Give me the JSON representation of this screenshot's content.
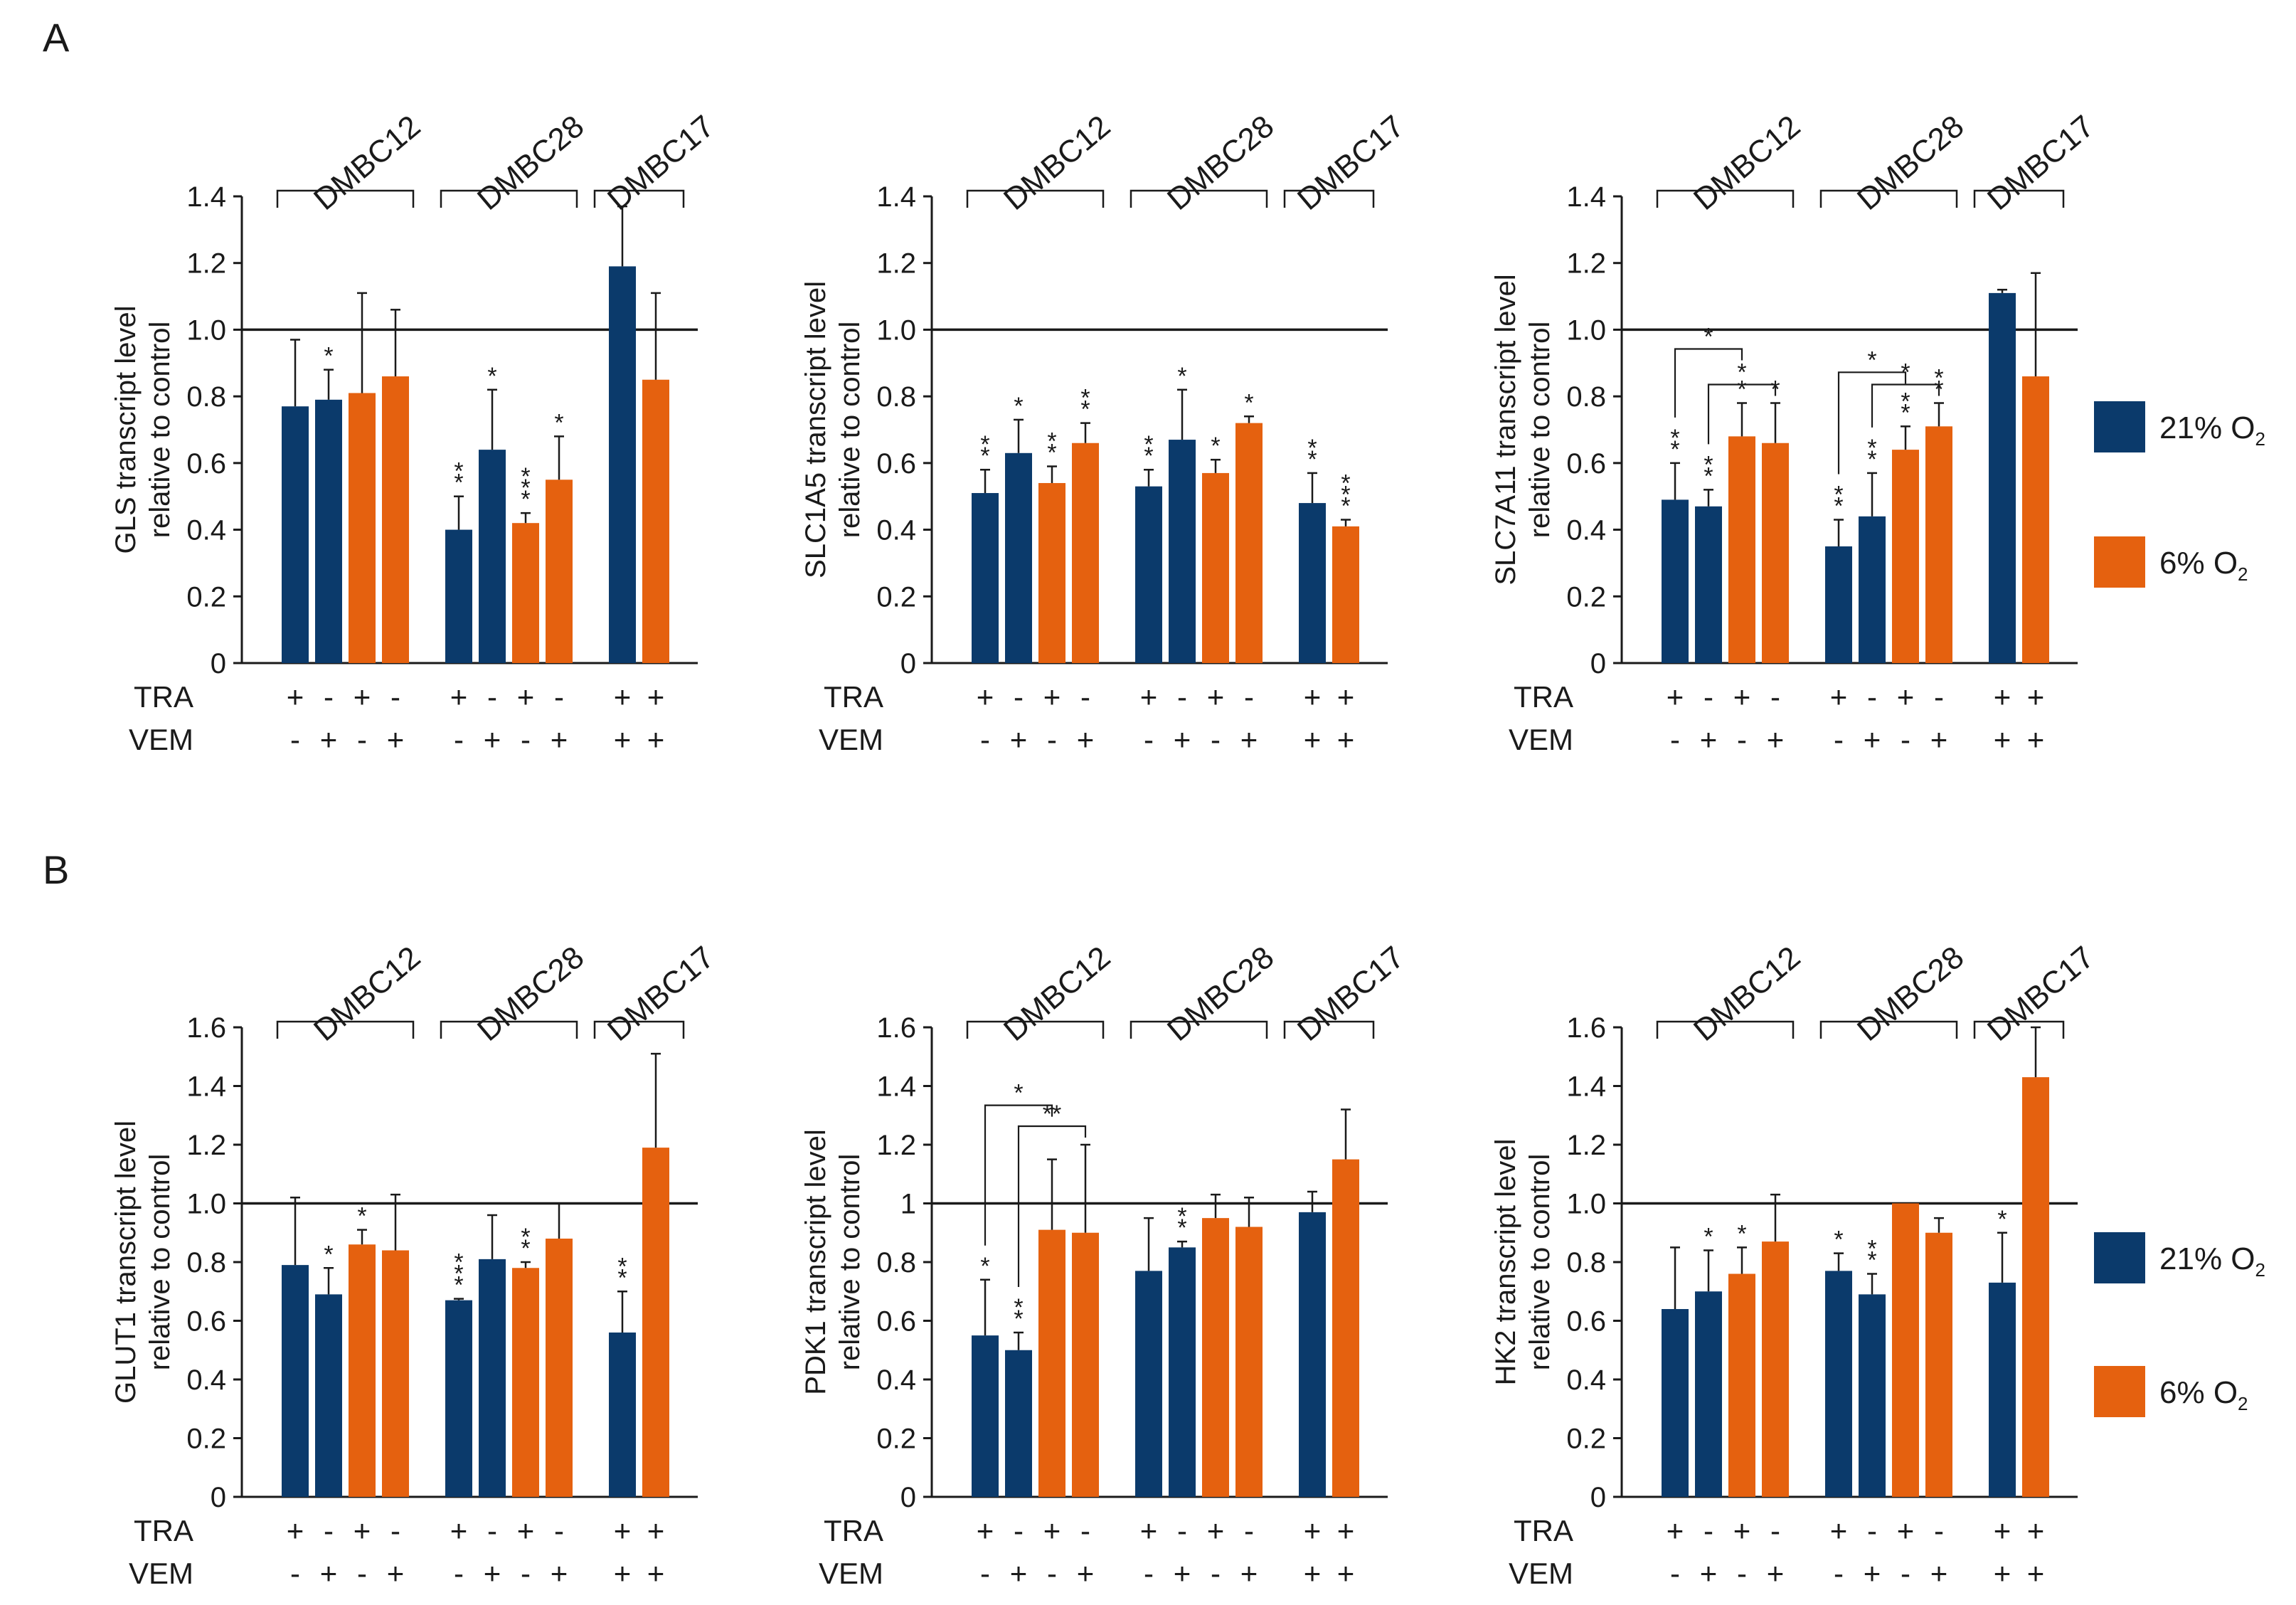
{
  "panel_letters": [
    "A",
    "B"
  ],
  "legend": {
    "items": [
      {
        "label": "21% O",
        "sub": "2",
        "color": "#0b3a6b"
      },
      {
        "label": "6% O",
        "sub": "2",
        "color": "#e5610f"
      }
    ]
  },
  "colors": {
    "navy": "#0b3a6b",
    "orange": "#e5610f",
    "axis": "#1a1a1a"
  },
  "row_labels": {
    "tra": "TRA",
    "vem": "VEM"
  },
  "chart_data": [
    {
      "type": "bar",
      "panel": "A",
      "title": "",
      "ylabel": [
        "GLS transcript level",
        "relative to control"
      ],
      "ylim": [
        0,
        1.4
      ],
      "yticks": [
        "0",
        "0.2",
        "0.4",
        "0.6",
        "0.8",
        "1.0",
        "1.2",
        "1.4"
      ],
      "reference_line": 1.0,
      "error_bars": "positive SD",
      "groups": [
        {
          "name": "DMBC12",
          "bars": [
            {
              "o2": "21% O2",
              "tra": "+",
              "vem": "-",
              "value": 0.77,
              "err": 0.2,
              "sig": ""
            },
            {
              "o2": "21% O2",
              "tra": "-",
              "vem": "+",
              "value": 0.79,
              "err": 0.09,
              "sig": "*"
            },
            {
              "o2": "6% O2",
              "tra": "+",
              "vem": "-",
              "value": 0.81,
              "err": 0.3,
              "sig": ""
            },
            {
              "o2": "6% O2",
              "tra": "-",
              "vem": "+",
              "value": 0.86,
              "err": 0.2,
              "sig": ""
            }
          ]
        },
        {
          "name": "DMBC28",
          "bars": [
            {
              "o2": "21% O2",
              "tra": "+",
              "vem": "-",
              "value": 0.4,
              "err": 0.1,
              "sig": "**"
            },
            {
              "o2": "21% O2",
              "tra": "-",
              "vem": "+",
              "value": 0.64,
              "err": 0.18,
              "sig": "*"
            },
            {
              "o2": "6% O2",
              "tra": "+",
              "vem": "-",
              "value": 0.42,
              "err": 0.03,
              "sig": "***"
            },
            {
              "o2": "6% O2",
              "tra": "-",
              "vem": "+",
              "value": 0.55,
              "err": 0.13,
              "sig": "*"
            }
          ]
        },
        {
          "name": "DMBC17",
          "bars": [
            {
              "o2": "21% O2",
              "tra": "+",
              "vem": "+",
              "value": 1.19,
              "err": 0.18,
              "sig": ""
            },
            {
              "o2": "6% O2",
              "tra": "+",
              "vem": "+",
              "value": 0.85,
              "err": 0.26,
              "sig": ""
            }
          ]
        }
      ],
      "comparisons": []
    },
    {
      "type": "bar",
      "panel": "A",
      "title": "",
      "ylabel": [
        "SLC1A5 transcript level",
        "relative to control"
      ],
      "ylim": [
        0,
        1.4
      ],
      "yticks": [
        "0",
        "0.2",
        "0.4",
        "0.6",
        "0.8",
        "1.0",
        "1.2",
        "1.4"
      ],
      "reference_line": 1.0,
      "error_bars": "positive SD",
      "groups": [
        {
          "name": "DMBC12",
          "bars": [
            {
              "o2": "21% O2",
              "tra": "+",
              "vem": "-",
              "value": 0.51,
              "err": 0.07,
              "sig": "**"
            },
            {
              "o2": "21% O2",
              "tra": "-",
              "vem": "+",
              "value": 0.63,
              "err": 0.1,
              "sig": "*"
            },
            {
              "o2": "6% O2",
              "tra": "+",
              "vem": "-",
              "value": 0.54,
              "err": 0.05,
              "sig": "**"
            },
            {
              "o2": "6% O2",
              "tra": "-",
              "vem": "+",
              "value": 0.66,
              "err": 0.06,
              "sig": "**"
            }
          ]
        },
        {
          "name": "DMBC28",
          "bars": [
            {
              "o2": "21% O2",
              "tra": "+",
              "vem": "-",
              "value": 0.53,
              "err": 0.05,
              "sig": "**"
            },
            {
              "o2": "21% O2",
              "tra": "-",
              "vem": "+",
              "value": 0.67,
              "err": 0.15,
              "sig": "*"
            },
            {
              "o2": "6% O2",
              "tra": "+",
              "vem": "-",
              "value": 0.57,
              "err": 0.04,
              "sig": "*"
            },
            {
              "o2": "6% O2",
              "tra": "-",
              "vem": "+",
              "value": 0.72,
              "err": 0.02,
              "sig": "*"
            }
          ]
        },
        {
          "name": "DMBC17",
          "bars": [
            {
              "o2": "21% O2",
              "tra": "+",
              "vem": "+",
              "value": 0.48,
              "err": 0.09,
              "sig": "**"
            },
            {
              "o2": "6% O2",
              "tra": "+",
              "vem": "+",
              "value": 0.41,
              "err": 0.02,
              "sig": "***"
            }
          ]
        }
      ],
      "comparisons": []
    },
    {
      "type": "bar",
      "panel": "A",
      "title": "",
      "ylabel": [
        "SLC7A11 transcript level",
        "relative to control"
      ],
      "ylim": [
        0,
        1.4
      ],
      "yticks": [
        "0",
        "0.2",
        "0.4",
        "0.6",
        "0.8",
        "1.0",
        "1.2",
        "1.4"
      ],
      "reference_line": 1.0,
      "error_bars": "positive SD",
      "groups": [
        {
          "name": "DMBC12",
          "bars": [
            {
              "o2": "21% O2",
              "tra": "+",
              "vem": "-",
              "value": 0.49,
              "err": 0.11,
              "sig": "**"
            },
            {
              "o2": "21% O2",
              "tra": "-",
              "vem": "+",
              "value": 0.47,
              "err": 0.05,
              "sig": "**"
            },
            {
              "o2": "6% O2",
              "tra": "+",
              "vem": "-",
              "value": 0.68,
              "err": 0.1,
              "sig": "*"
            },
            {
              "o2": "6% O2",
              "tra": "-",
              "vem": "+",
              "value": 0.66,
              "err": 0.12,
              "sig": "*"
            }
          ]
        },
        {
          "name": "DMBC28",
          "bars": [
            {
              "o2": "21% O2",
              "tra": "+",
              "vem": "-",
              "value": 0.35,
              "err": 0.08,
              "sig": "**"
            },
            {
              "o2": "21% O2",
              "tra": "-",
              "vem": "+",
              "value": 0.44,
              "err": 0.13,
              "sig": "**"
            },
            {
              "o2": "6% O2",
              "tra": "+",
              "vem": "-",
              "value": 0.64,
              "err": 0.07,
              "sig": "**"
            },
            {
              "o2": "6% O2",
              "tra": "-",
              "vem": "+",
              "value": 0.71,
              "err": 0.07,
              "sig": "**"
            }
          ]
        },
        {
          "name": "DMBC17",
          "bars": [
            {
              "o2": "21% O2",
              "tra": "+",
              "vem": "+",
              "value": 1.11,
              "err": 0.01,
              "sig": ""
            },
            {
              "o2": "6% O2",
              "tra": "+",
              "vem": "+",
              "value": 0.86,
              "err": 0.31,
              "sig": ""
            }
          ]
        }
      ],
      "comparisons": [
        {
          "from": [
            0,
            0
          ],
          "to": [
            0,
            2
          ],
          "label": "*"
        },
        {
          "from": [
            0,
            1
          ],
          "to": [
            0,
            3
          ],
          "label": "*"
        },
        {
          "from": [
            1,
            0
          ],
          "to": [
            1,
            2
          ],
          "label": "*"
        },
        {
          "from": [
            1,
            1
          ],
          "to": [
            1,
            3
          ],
          "label": "*"
        }
      ]
    },
    {
      "type": "bar",
      "panel": "B",
      "title": "",
      "ylabel": [
        "GLUT1 transcript level",
        "relative to control"
      ],
      "ylim": [
        0,
        1.6
      ],
      "yticks": [
        "0",
        "0.2",
        "0.4",
        "0.6",
        "0.8",
        "1.0",
        "1.2",
        "1.4",
        "1.6"
      ],
      "reference_line": 1.0,
      "error_bars": "positive SD",
      "groups": [
        {
          "name": "DMBC12",
          "bars": [
            {
              "o2": "21% O2",
              "tra": "+",
              "vem": "-",
              "value": 0.79,
              "err": 0.23,
              "sig": ""
            },
            {
              "o2": "21% O2",
              "tra": "-",
              "vem": "+",
              "value": 0.69,
              "err": 0.09,
              "sig": "*"
            },
            {
              "o2": "6% O2",
              "tra": "+",
              "vem": "-",
              "value": 0.86,
              "err": 0.05,
              "sig": "*"
            },
            {
              "o2": "6% O2",
              "tra": "-",
              "vem": "+",
              "value": 0.84,
              "err": 0.19,
              "sig": ""
            }
          ]
        },
        {
          "name": "DMBC28",
          "bars": [
            {
              "o2": "21% O2",
              "tra": "+",
              "vem": "-",
              "value": 0.67,
              "err": 0.005,
              "sig": "***"
            },
            {
              "o2": "21% O2",
              "tra": "-",
              "vem": "+",
              "value": 0.81,
              "err": 0.15,
              "sig": ""
            },
            {
              "o2": "6% O2",
              "tra": "+",
              "vem": "-",
              "value": 0.78,
              "err": 0.02,
              "sig": "**"
            },
            {
              "o2": "6% O2",
              "tra": "-",
              "vem": "+",
              "value": 0.88,
              "err": 0.12,
              "sig": ""
            }
          ]
        },
        {
          "name": "DMBC17",
          "bars": [
            {
              "o2": "21% O2",
              "tra": "+",
              "vem": "+",
              "value": 0.56,
              "err": 0.14,
              "sig": "**"
            },
            {
              "o2": "6% O2",
              "tra": "+",
              "vem": "+",
              "value": 1.19,
              "err": 0.32,
              "sig": ""
            }
          ]
        }
      ],
      "comparisons": []
    },
    {
      "type": "bar",
      "panel": "B",
      "title": "",
      "ylabel": [
        "PDK1 transcript level",
        "relative to control"
      ],
      "ylim": [
        0,
        1.6
      ],
      "yticks": [
        "0",
        "0.2",
        "0.4",
        "0.6",
        "0.8",
        "1",
        "1.2",
        "1.4",
        "1.6"
      ],
      "reference_line": 1.0,
      "error_bars": "positive SD",
      "groups": [
        {
          "name": "DMBC12",
          "bars": [
            {
              "o2": "21% O2",
              "tra": "+",
              "vem": "-",
              "value": 0.55,
              "err": 0.19,
              "sig": "*"
            },
            {
              "o2": "21% O2",
              "tra": "-",
              "vem": "+",
              "value": 0.5,
              "err": 0.06,
              "sig": "**"
            },
            {
              "o2": "6% O2",
              "tra": "+",
              "vem": "-",
              "value": 0.91,
              "err": 0.24,
              "sig": ""
            },
            {
              "o2": "6% O2",
              "tra": "-",
              "vem": "+",
              "value": 0.9,
              "err": 0.3,
              "sig": ""
            }
          ]
        },
        {
          "name": "DMBC28",
          "bars": [
            {
              "o2": "21% O2",
              "tra": "+",
              "vem": "-",
              "value": 0.77,
              "err": 0.18,
              "sig": ""
            },
            {
              "o2": "21% O2",
              "tra": "-",
              "vem": "+",
              "value": 0.85,
              "err": 0.02,
              "sig": "**"
            },
            {
              "o2": "6% O2",
              "tra": "+",
              "vem": "-",
              "value": 0.95,
              "err": 0.08,
              "sig": ""
            },
            {
              "o2": "6% O2",
              "tra": "-",
              "vem": "+",
              "value": 0.92,
              "err": 0.1,
              "sig": ""
            }
          ]
        },
        {
          "name": "DMBC17",
          "bars": [
            {
              "o2": "21% O2",
              "tra": "+",
              "vem": "+",
              "value": 0.97,
              "err": 0.07,
              "sig": ""
            },
            {
              "o2": "6% O2",
              "tra": "+",
              "vem": "+",
              "value": 1.15,
              "err": 0.17,
              "sig": ""
            }
          ]
        }
      ],
      "comparisons": [
        {
          "from": [
            0,
            0
          ],
          "to": [
            0,
            2
          ],
          "label": "*"
        },
        {
          "from": [
            0,
            1
          ],
          "to": [
            0,
            3
          ],
          "label": "**"
        }
      ]
    },
    {
      "type": "bar",
      "panel": "B",
      "title": "",
      "ylabel": [
        "HK2 transcript level",
        "relative to control"
      ],
      "ylim": [
        0,
        1.6
      ],
      "yticks": [
        "0",
        "0.2",
        "0.4",
        "0.6",
        "0.8",
        "1.0",
        "1.2",
        "1.4",
        "1.6"
      ],
      "reference_line": 1.0,
      "error_bars": "positive SD",
      "groups": [
        {
          "name": "DMBC12",
          "bars": [
            {
              "o2": "21% O2",
              "tra": "+",
              "vem": "-",
              "value": 0.64,
              "err": 0.21,
              "sig": ""
            },
            {
              "o2": "21% O2",
              "tra": "-",
              "vem": "+",
              "value": 0.7,
              "err": 0.14,
              "sig": "*"
            },
            {
              "o2": "6% O2",
              "tra": "+",
              "vem": "-",
              "value": 0.76,
              "err": 0.09,
              "sig": "*"
            },
            {
              "o2": "6% O2",
              "tra": "-",
              "vem": "+",
              "value": 0.87,
              "err": 0.16,
              "sig": ""
            }
          ]
        },
        {
          "name": "DMBC28",
          "bars": [
            {
              "o2": "21% O2",
              "tra": "+",
              "vem": "-",
              "value": 0.77,
              "err": 0.06,
              "sig": "*"
            },
            {
              "o2": "21% O2",
              "tra": "-",
              "vem": "+",
              "value": 0.69,
              "err": 0.07,
              "sig": "**"
            },
            {
              "o2": "6% O2",
              "tra": "+",
              "vem": "-",
              "value": 1.0,
              "err": 0.0,
              "sig": ""
            },
            {
              "o2": "6% O2",
              "tra": "-",
              "vem": "+",
              "value": 0.9,
              "err": 0.05,
              "sig": ""
            }
          ]
        },
        {
          "name": "DMBC17",
          "bars": [
            {
              "o2": "21% O2",
              "tra": "+",
              "vem": "+",
              "value": 0.73,
              "err": 0.17,
              "sig": "*"
            },
            {
              "o2": "6% O2",
              "tra": "+",
              "vem": "+",
              "value": 1.43,
              "err": 0.17,
              "sig": ""
            }
          ]
        }
      ],
      "comparisons": []
    }
  ]
}
